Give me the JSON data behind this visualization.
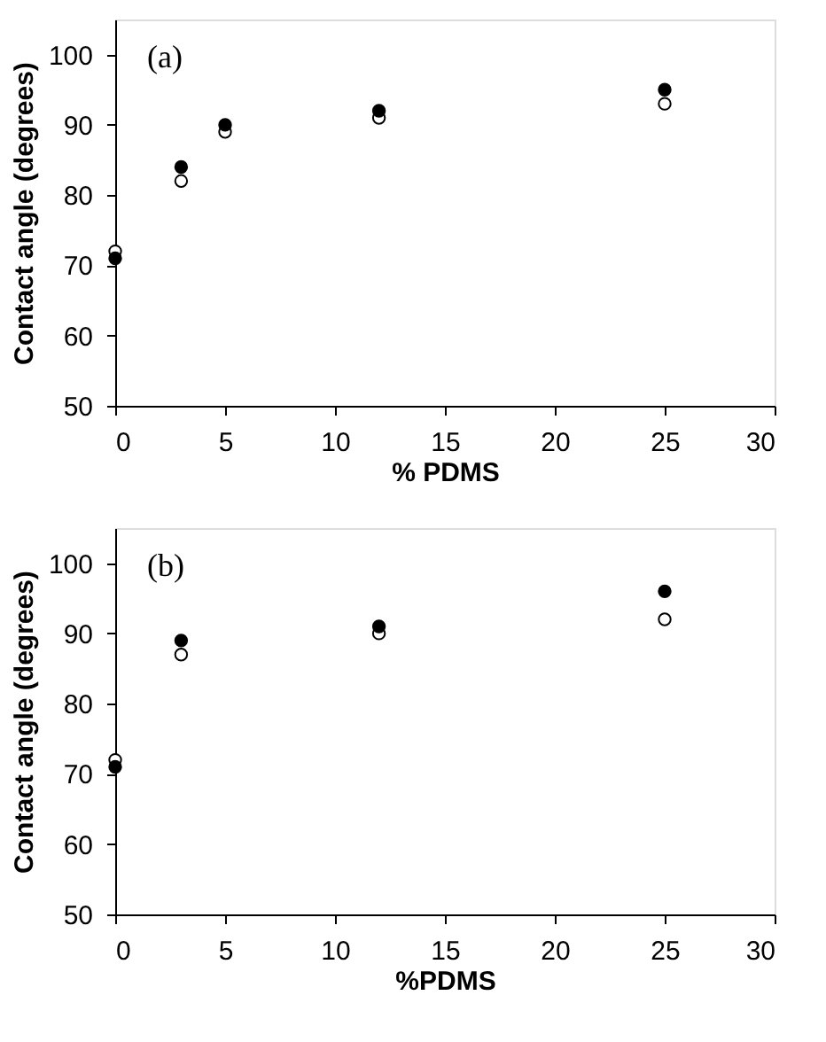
{
  "chart_data": [
    {
      "type": "scatter",
      "xlabel": "% PDMS",
      "ylabel": "Contact angle (degrees)",
      "annotations": [
        "(a)"
      ],
      "x": [
        0,
        3,
        5,
        12,
        25
      ],
      "xlim": [
        0,
        30
      ],
      "xticks": [
        0,
        5,
        10,
        15,
        20,
        25,
        30
      ],
      "ylim": [
        50,
        105
      ],
      "yticks": [
        50,
        60,
        70,
        80,
        90,
        100
      ],
      "grid": false,
      "marker": "circle",
      "series": [
        {
          "color": "#ffffff",
          "values": [
            72,
            82,
            89,
            91,
            93
          ]
        },
        {
          "color": "#000000",
          "values": [
            71,
            84,
            90,
            92,
            95
          ]
        }
      ]
    },
    {
      "type": "scatter",
      "xlabel": "%PDMS",
      "ylabel": "Contact angle (degrees)",
      "annotations": [
        "(b)"
      ],
      "x": [
        0,
        3,
        12,
        25
      ],
      "xlim": [
        0,
        30
      ],
      "xticks": [
        0,
        5,
        10,
        15,
        20,
        25,
        30
      ],
      "ylim": [
        50,
        105
      ],
      "yticks": [
        50,
        60,
        70,
        80,
        90,
        100
      ],
      "grid": false,
      "marker": "circle",
      "series": [
        {
          "color": "#ffffff",
          "values": [
            72,
            87,
            90,
            92
          ]
        },
        {
          "color": "#000000",
          "values": [
            71,
            89,
            91,
            96
          ]
        }
      ]
    }
  ]
}
